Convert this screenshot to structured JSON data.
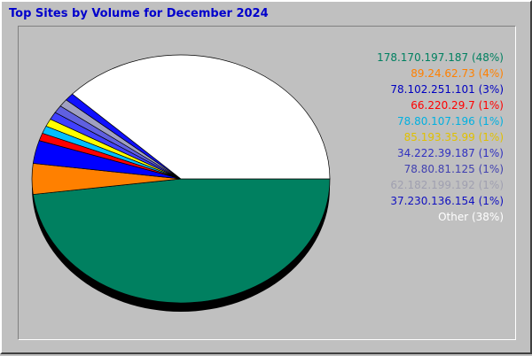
{
  "chart_data": {
    "type": "pie",
    "title": "Top Sites by Volume for December 2024",
    "legend_position": "right",
    "slices": [
      {
        "label": "178.170.197.187 (48%)",
        "value": 48,
        "color": "#008060"
      },
      {
        "label": "89.24.62.73 (4%)",
        "value": 4,
        "color": "#ff8000"
      },
      {
        "label": "78.102.251.101 (3%)",
        "value": 3,
        "color": "#0000ff"
      },
      {
        "label": "66.220.29.7 (1%)",
        "value": 1,
        "color": "#ff0000"
      },
      {
        "label": "78.80.107.196 (1%)",
        "value": 1,
        "color": "#00c0ff"
      },
      {
        "label": "85.193.35.99 (1%)",
        "value": 1,
        "color": "#ffff00"
      },
      {
        "label": "34.222.39.187 (1%)",
        "value": 1,
        "color": "#4040ff"
      },
      {
        "label": "78.80.81.125 (1%)",
        "value": 1,
        "color": "#6060e0"
      },
      {
        "label": "62.182.199.192 (1%)",
        "value": 1,
        "color": "#a0a0c0"
      },
      {
        "label": "37.230.136.154 (1%)",
        "value": 1,
        "color": "#1010ff"
      },
      {
        "label": "Other (38%)",
        "value": 38,
        "color": "#ffffff"
      }
    ],
    "legend_colors": [
      "#008060",
      "#ff8000",
      "#0000c0",
      "#ff0000",
      "#00b0e0",
      "#e0c000",
      "#3030c0",
      "#4040b0",
      "#a0a0b0",
      "#1010c0",
      "#ffffff"
    ]
  }
}
